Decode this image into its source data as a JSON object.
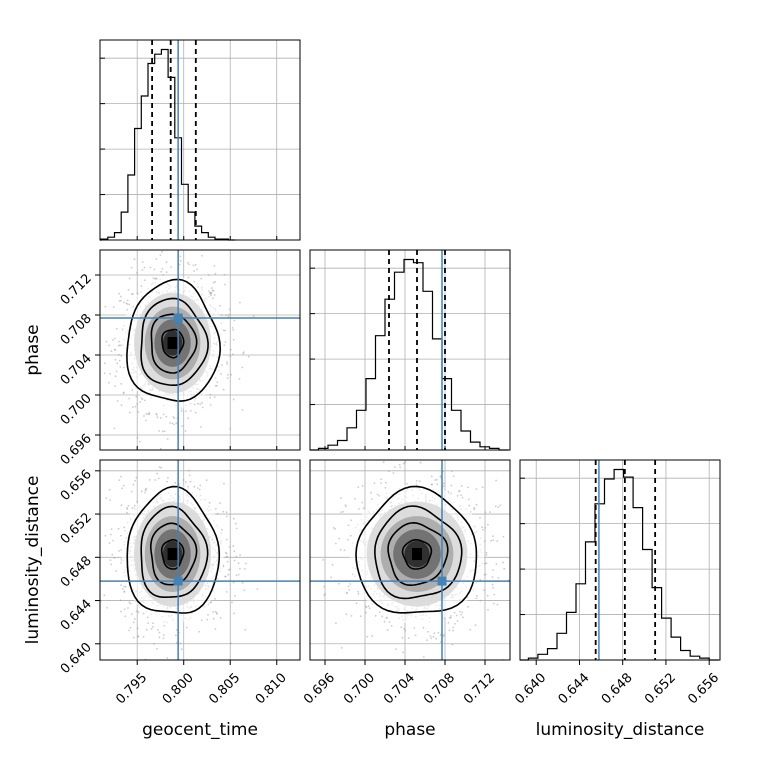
{
  "chart_data": {
    "type": "corner",
    "parameters": [
      "geocent_time",
      "phase",
      "luminosity_distance"
    ],
    "axis_labels": [
      "geocent_time",
      "phase",
      "luminosity_distance"
    ],
    "ranges": [
      [
        0.791,
        0.8125
      ],
      [
        0.6945,
        0.7145
      ],
      [
        0.6385,
        0.657
      ]
    ],
    "ticks": [
      [
        "0.795",
        "0.800",
        "0.805",
        "0.810"
      ],
      [
        "0.696",
        "0.700",
        "0.704",
        "0.708",
        "0.712"
      ],
      [
        "0.640",
        "0.644",
        "0.648",
        "0.652",
        "0.656"
      ]
    ],
    "truths": [
      0.7994,
      0.7077,
      0.6458
    ],
    "colors": {
      "truth": "#4682b4",
      "hist": "#000000",
      "contour": "#000000"
    },
    "grid": true,
    "histograms": [
      {
        "bin_start": 0.7904,
        "bin_width": 0.00072,
        "counts": [
          0,
          1,
          3,
          8,
          30,
          70,
          120,
          155,
          190,
          200,
          205,
          175,
          110,
          60,
          30,
          15,
          8,
          3,
          1,
          1,
          0
        ],
        "quantiles": [
          0.7966,
          0.7986,
          0.8013
        ]
      },
      {
        "bin_start": 0.6944,
        "bin_width": 0.00095,
        "counts": [
          0,
          1,
          3,
          6,
          14,
          25,
          45,
          72,
          95,
          112,
          120,
          118,
          100,
          70,
          45,
          25,
          12,
          5,
          2,
          1,
          0
        ],
        "quantiles": [
          0.7024,
          0.7052,
          0.708
        ]
      },
      {
        "bin_start": 0.6384,
        "bin_width": 0.00088,
        "counts": [
          0,
          1,
          3,
          6,
          14,
          25,
          40,
          62,
          82,
          95,
          100,
          96,
          80,
          58,
          38,
          22,
          12,
          5,
          2,
          1,
          0
        ],
        "quantiles": [
          0.6455,
          0.6482,
          0.651
        ]
      }
    ],
    "pairs": [
      {
        "x": 0,
        "y": 1,
        "center": [
          0.7988,
          0.7052
        ],
        "sigma": [
          0.0023,
          0.0028
        ]
      },
      {
        "x": 0,
        "y": 2,
        "center": [
          0.7988,
          0.6483
        ],
        "sigma": [
          0.0023,
          0.0027
        ]
      },
      {
        "x": 1,
        "y": 2,
        "center": [
          0.7052,
          0.6483
        ],
        "sigma": [
          0.0028,
          0.0027
        ]
      }
    ]
  }
}
